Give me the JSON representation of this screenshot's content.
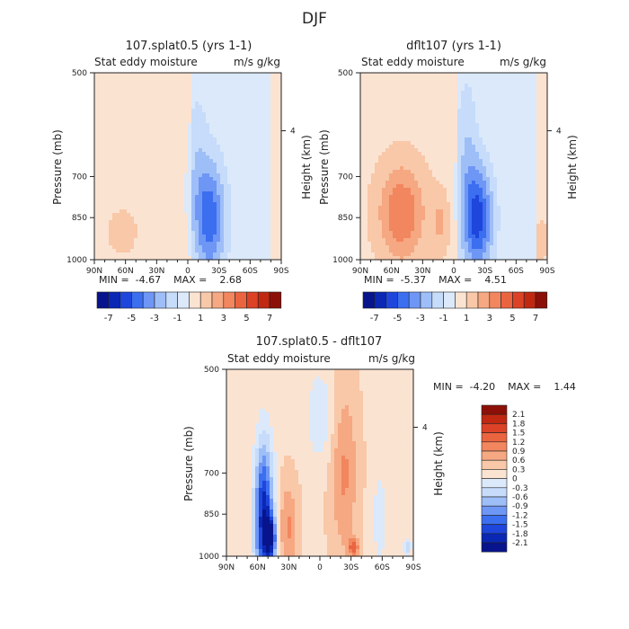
{
  "title": "DJF",
  "colors": {
    "neg": [
      "#08148c",
      "#0a28b4",
      "#1e46dc",
      "#3c6ef0",
      "#6e96f5",
      "#9ebef8",
      "#c6dcfa",
      "#dbe9fb"
    ],
    "pos": [
      "#fbe3d2",
      "#f8c8a8",
      "#f5a882",
      "#f2865e",
      "#eb6440",
      "#dc4226",
      "#c02812",
      "#8c1008"
    ]
  },
  "chart_data": [
    {
      "type": "heatmap",
      "title": "107.splat0.5 (yrs 1-1)",
      "subtitle_left": "Stat eddy moisture",
      "subtitle_right": "m/s g/kg",
      "ylabel": "Pressure (mb)",
      "ylabel_right": "Height (km)",
      "x_ticks": [
        "90N",
        "60N",
        "30N",
        "0",
        "30S",
        "60S",
        "90S"
      ],
      "y_ticks": [
        "500",
        "700",
        "850",
        "1000"
      ],
      "right_ticks": [
        "4"
      ],
      "stats": "MIN =  -4.67    MAX =    2.68",
      "min": -4.67,
      "max": 2.68,
      "colorbar_labels": [
        "-7",
        "-5",
        "-3",
        "-1",
        "1",
        "3",
        "5",
        "7"
      ]
    },
    {
      "type": "heatmap",
      "title": "dflt107 (yrs 1-1)",
      "subtitle_left": "Stat eddy moisture",
      "subtitle_right": "m/s g/kg",
      "ylabel": "Pressure (mb)",
      "ylabel_right": "Height (km)",
      "x_ticks": [
        "90N",
        "60N",
        "30N",
        "0",
        "30S",
        "60S",
        "90S"
      ],
      "y_ticks": [
        "500",
        "700",
        "850",
        "1000"
      ],
      "right_ticks": [
        "4"
      ],
      "stats": "MIN =  -5.37    MAX =    4.51",
      "min": -5.37,
      "max": 4.51,
      "colorbar_labels": [
        "-7",
        "-5",
        "-3",
        "-1",
        "1",
        "3",
        "5",
        "7"
      ]
    },
    {
      "type": "heatmap",
      "title": "107.splat0.5 - dflt107",
      "subtitle_left": "Stat eddy moisture",
      "subtitle_right": "m/s g/kg",
      "ylabel": "Pressure (mb)",
      "ylabel_right": "Height (km)",
      "x_ticks": [
        "90N",
        "60N",
        "30N",
        "0",
        "30S",
        "60S",
        "90S"
      ],
      "y_ticks": [
        "500",
        "700",
        "850",
        "1000"
      ],
      "right_ticks": [
        "4"
      ],
      "stats": "MIN =  -4.20    MAX =    1.44",
      "min": -4.2,
      "max": 1.44,
      "colorbar_labels": [
        "2.1",
        "1.8",
        "1.5",
        "1.2",
        "0.9",
        "0.6",
        "0.3",
        "0",
        "-0.3",
        "-0.6",
        "-0.9",
        "-1.2",
        "-1.5",
        "-1.8",
        "-2.1"
      ]
    }
  ]
}
